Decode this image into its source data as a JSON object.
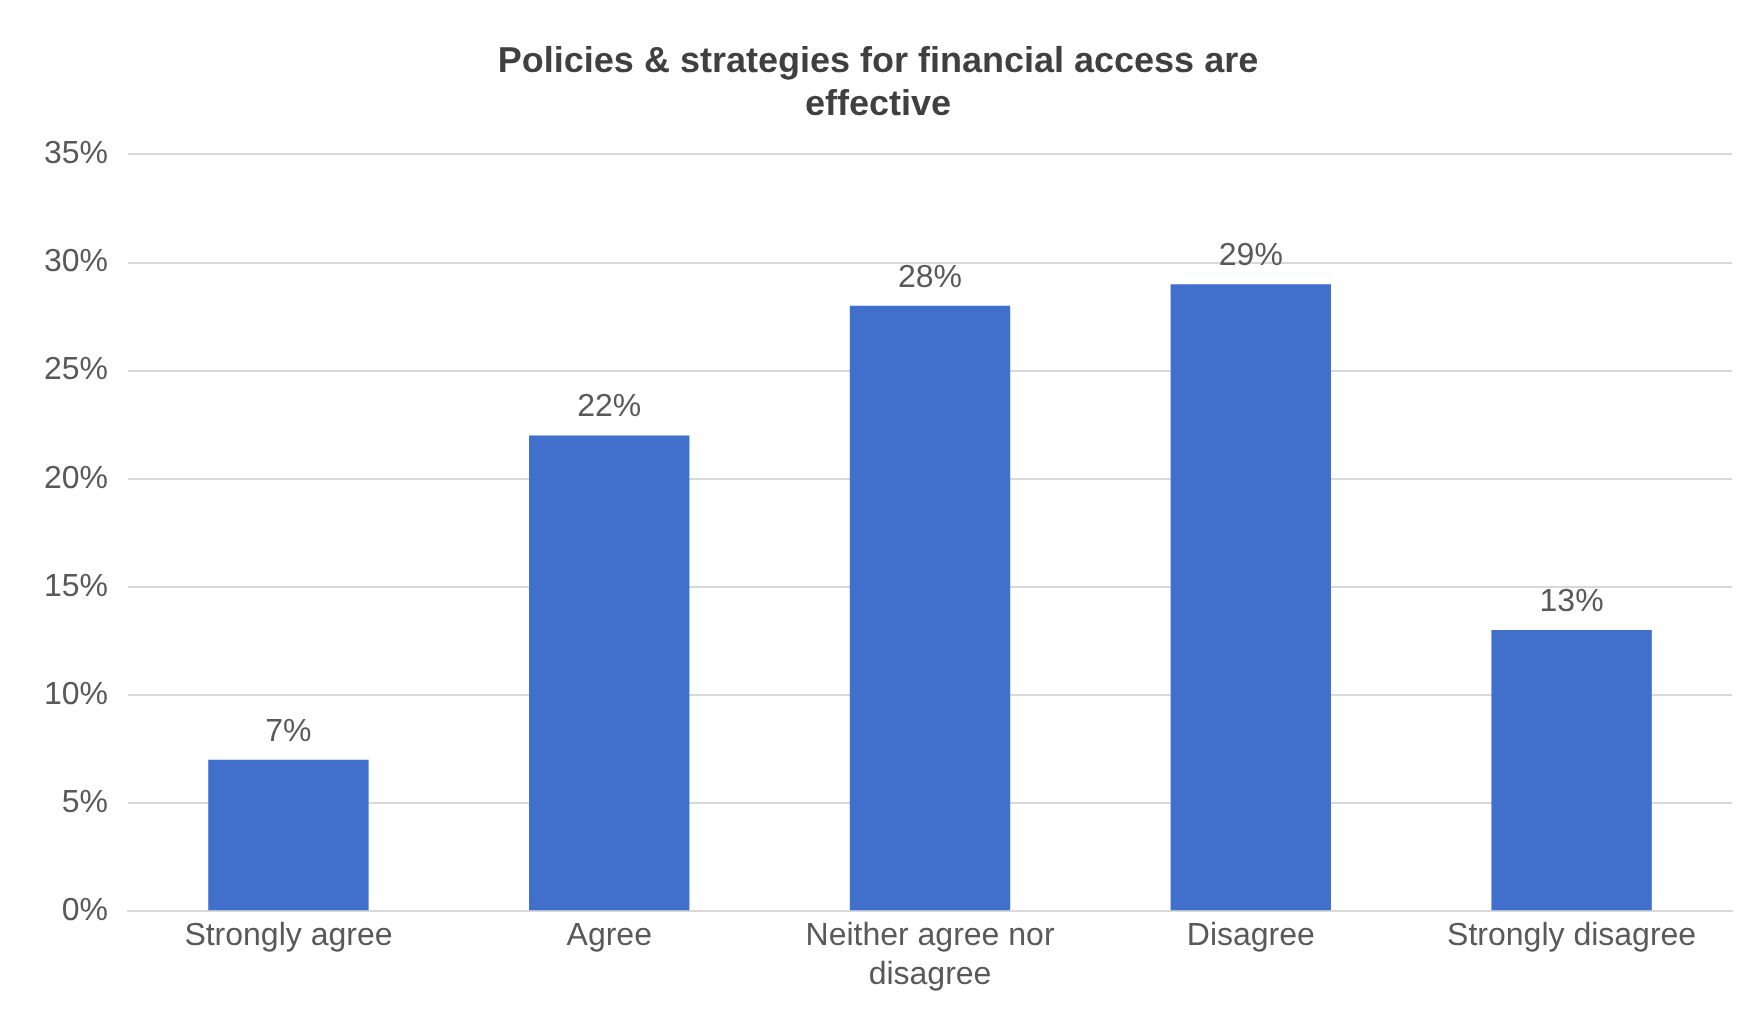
{
  "chart_data": {
    "type": "bar",
    "title": "Policies & strategies for financial access are effective",
    "categories": [
      "Strongly agree",
      "Agree",
      "Neither agree nor disagree",
      "Disagree",
      "Strongly disagree"
    ],
    "values": [
      7,
      22,
      28,
      29,
      13
    ],
    "value_labels": [
      "7%",
      "22%",
      "28%",
      "29%",
      "13%"
    ],
    "color": "#4070cc",
    "ylim": [
      0,
      35
    ],
    "yticks": [
      {
        "value": 0,
        "label": "0%"
      },
      {
        "value": 5,
        "label": "5%"
      },
      {
        "value": 10,
        "label": "10%"
      },
      {
        "value": 15,
        "label": "15%"
      },
      {
        "value": 20,
        "label": "20%"
      },
      {
        "value": 25,
        "label": "25%"
      },
      {
        "value": 30,
        "label": "30%"
      },
      {
        "value": 35,
        "label": "35%"
      }
    ],
    "grid": "y",
    "legend": false
  }
}
